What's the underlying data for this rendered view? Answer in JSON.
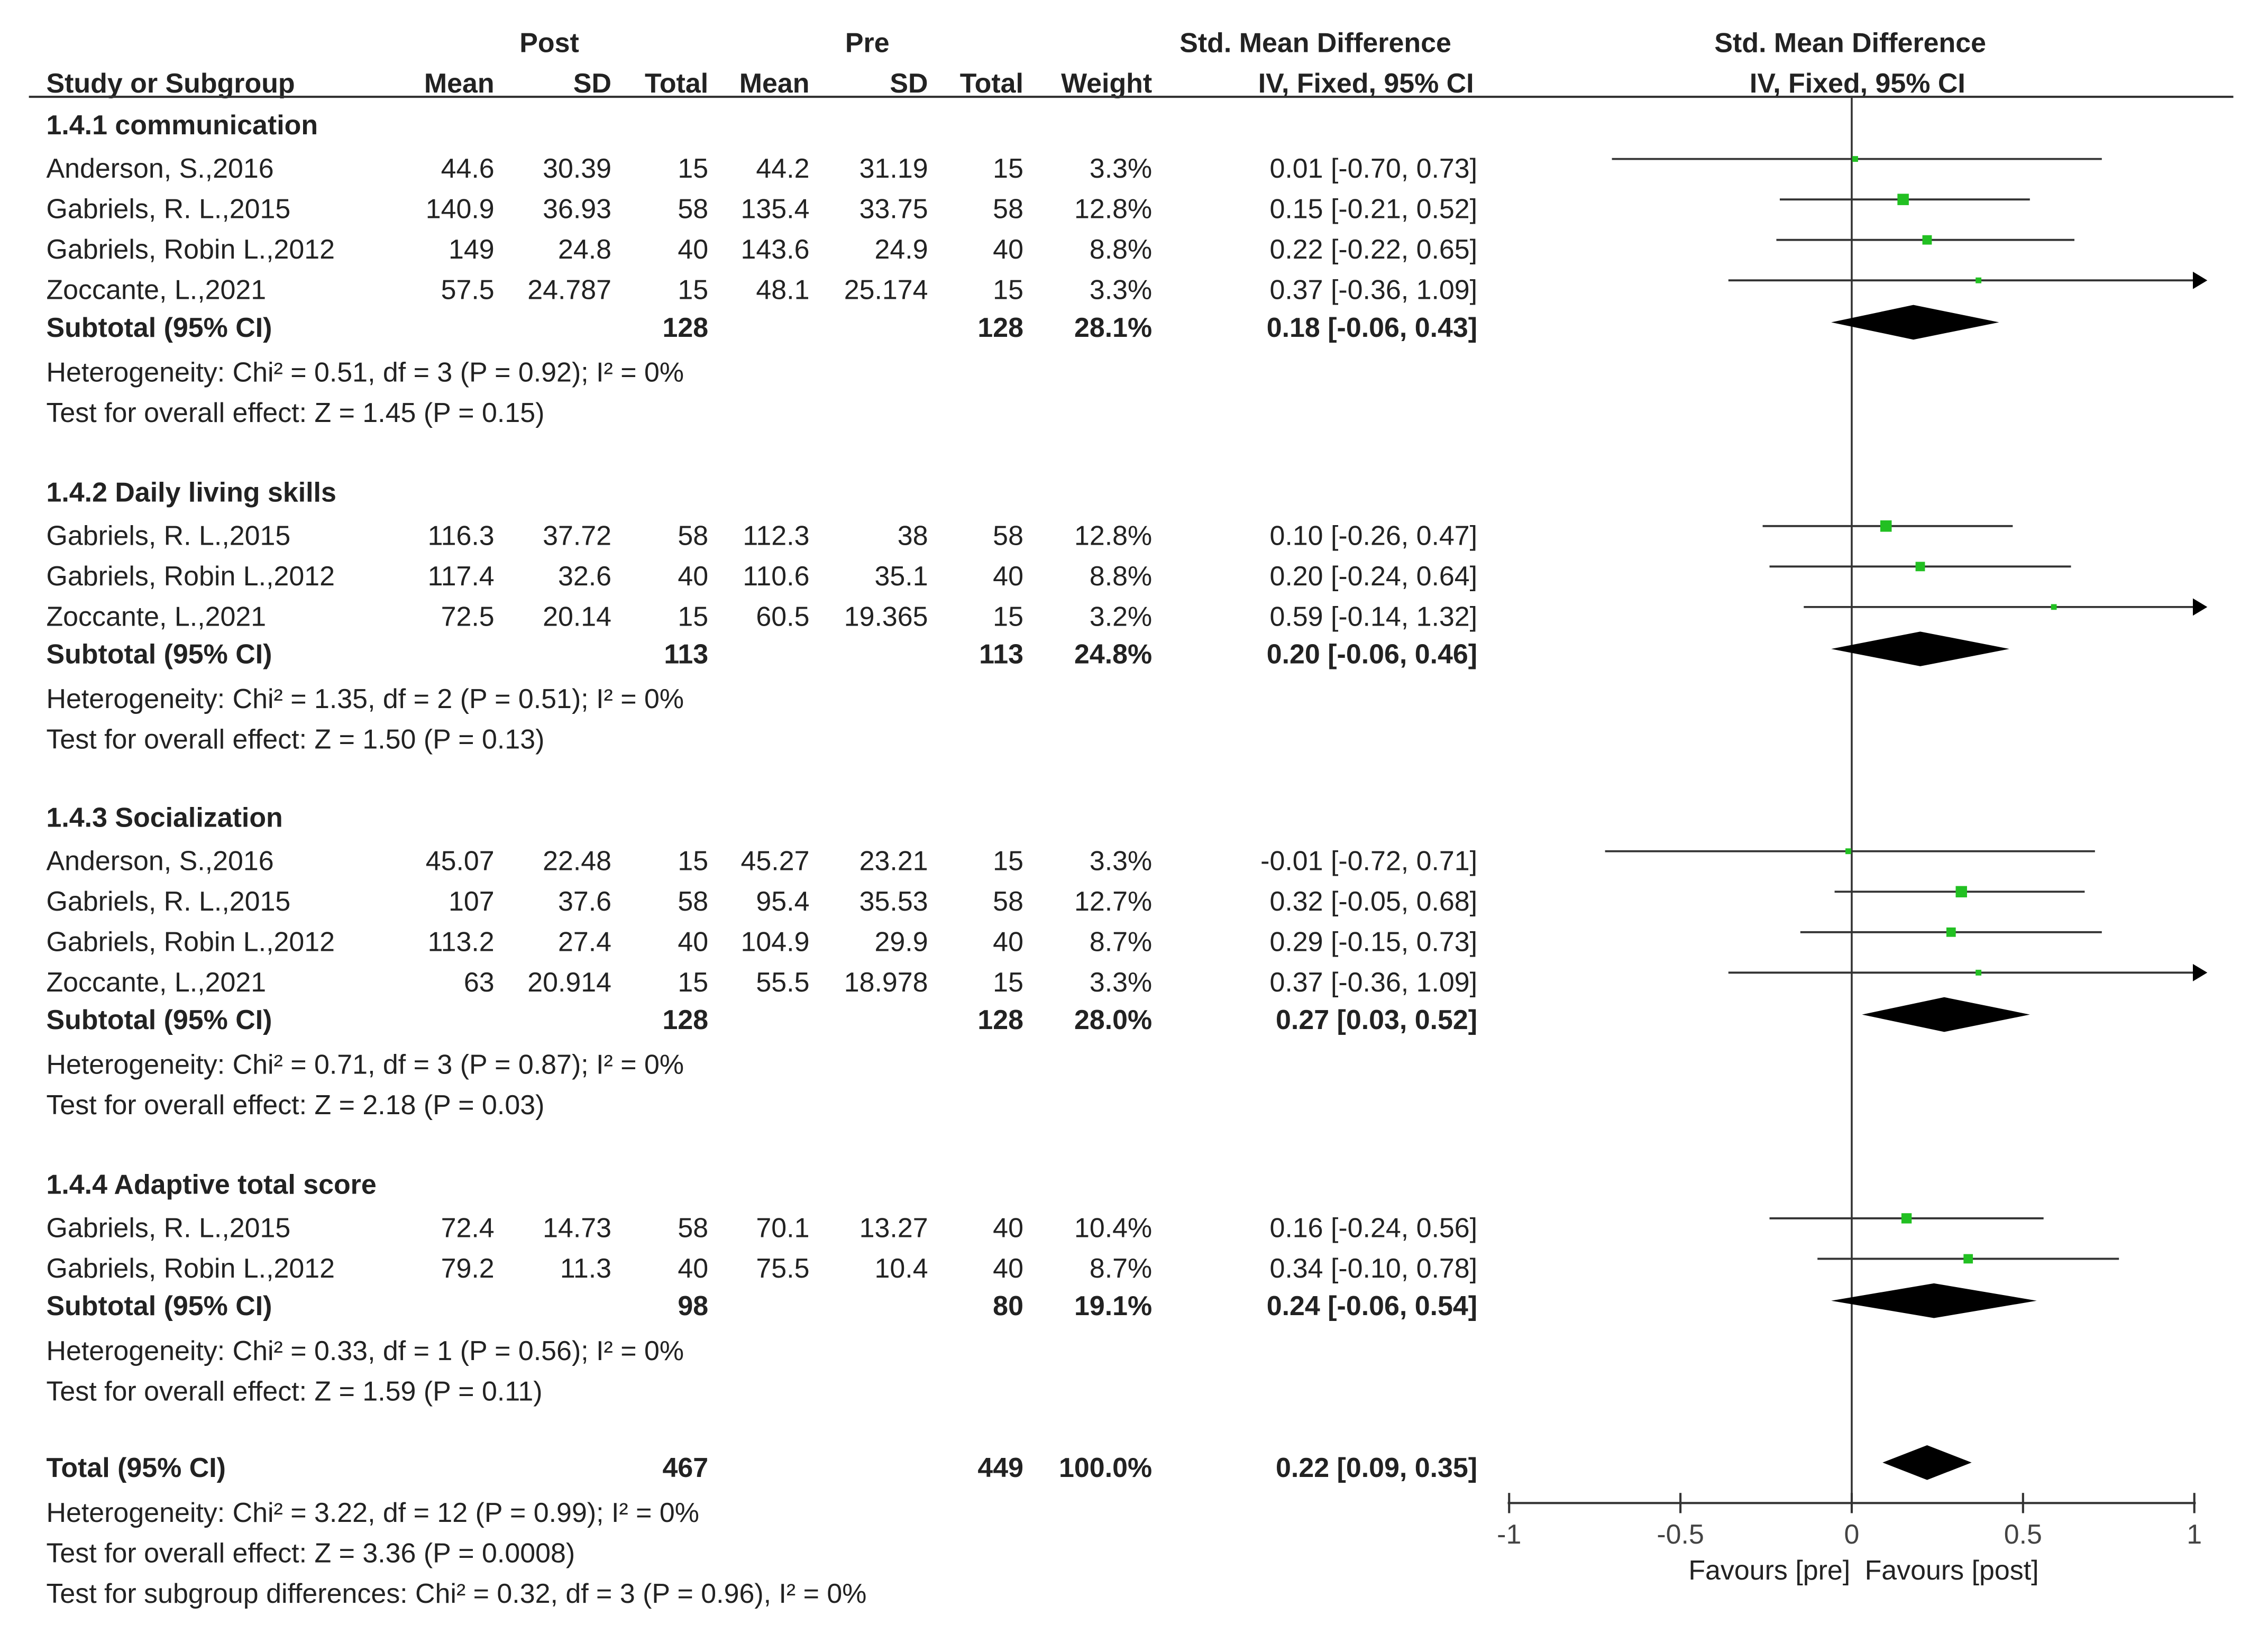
{
  "header": {
    "post_label": "Post",
    "pre_label": "Pre",
    "smd_label_text": "Std. Mean Difference",
    "smd_label_plot": "Std. Mean Difference",
    "col_study": "Study or Subgroup",
    "col_mean_post": "Mean",
    "col_sd_post": "SD",
    "col_total_post": "Total",
    "col_mean_pre": "Mean",
    "col_sd_pre": "SD",
    "col_total_pre": "Total",
    "col_weight": "Weight",
    "col_method_text": "IV, Fixed, 95% CI",
    "col_method_plot": "IV, Fixed, 95% CI"
  },
  "subgroups": [
    {
      "title": "1.4.1 communication",
      "studies": [
        {
          "name": "Anderson, S.,2016",
          "mean_post": "44.6",
          "sd_post": "30.39",
          "n_post": "15",
          "mean_pre": "44.2",
          "sd_pre": "31.19",
          "n_pre": "15",
          "weight": "3.3%",
          "ci_text": "0.01 [-0.70, 0.73]"
        },
        {
          "name": "Gabriels, R. L.,2015",
          "mean_post": "140.9",
          "sd_post": "36.93",
          "n_post": "58",
          "mean_pre": "135.4",
          "sd_pre": "33.75",
          "n_pre": "58",
          "weight": "12.8%",
          "ci_text": "0.15 [-0.21, 0.52]"
        },
        {
          "name": "Gabriels, Robin L.,2012",
          "mean_post": "149",
          "sd_post": "24.8",
          "n_post": "40",
          "mean_pre": "143.6",
          "sd_pre": "24.9",
          "n_pre": "40",
          "weight": "8.8%",
          "ci_text": "0.22 [-0.22, 0.65]"
        },
        {
          "name": "Zoccante, L.,2021",
          "mean_post": "57.5",
          "sd_post": "24.787",
          "n_post": "15",
          "mean_pre": "48.1",
          "sd_pre": "25.174",
          "n_pre": "15",
          "weight": "3.3%",
          "ci_text": "0.37 [-0.36, 1.09]"
        }
      ],
      "subtotal": {
        "label": "Subtotal (95% CI)",
        "n_post": "128",
        "n_pre": "128",
        "weight": "28.1%",
        "ci_text": "0.18 [-0.06, 0.43]"
      },
      "heterogeneity": "Heterogeneity: Chi² = 0.51, df = 3 (P = 0.92); I² = 0%",
      "overall_effect": "Test for overall effect: Z = 1.45 (P = 0.15)"
    },
    {
      "title": "1.4.2 Daily living skills",
      "studies": [
        {
          "name": "Gabriels, R. L.,2015",
          "mean_post": "116.3",
          "sd_post": "37.72",
          "n_post": "58",
          "mean_pre": "112.3",
          "sd_pre": "38",
          "n_pre": "58",
          "weight": "12.8%",
          "ci_text": "0.10 [-0.26, 0.47]"
        },
        {
          "name": "Gabriels, Robin L.,2012",
          "mean_post": "117.4",
          "sd_post": "32.6",
          "n_post": "40",
          "mean_pre": "110.6",
          "sd_pre": "35.1",
          "n_pre": "40",
          "weight": "8.8%",
          "ci_text": "0.20 [-0.24, 0.64]"
        },
        {
          "name": "Zoccante, L.,2021",
          "mean_post": "72.5",
          "sd_post": "20.14",
          "n_post": "15",
          "mean_pre": "60.5",
          "sd_pre": "19.365",
          "n_pre": "15",
          "weight": "3.2%",
          "ci_text": "0.59 [-0.14, 1.32]"
        }
      ],
      "subtotal": {
        "label": "Subtotal (95% CI)",
        "n_post": "113",
        "n_pre": "113",
        "weight": "24.8%",
        "ci_text": "0.20 [-0.06, 0.46]"
      },
      "heterogeneity": "Heterogeneity: Chi² = 1.35, df = 2 (P = 0.51); I² = 0%",
      "overall_effect": "Test for overall effect: Z = 1.50 (P = 0.13)"
    },
    {
      "title": "1.4.3 Socialization",
      "studies": [
        {
          "name": "Anderson, S.,2016",
          "mean_post": "45.07",
          "sd_post": "22.48",
          "n_post": "15",
          "mean_pre": "45.27",
          "sd_pre": "23.21",
          "n_pre": "15",
          "weight": "3.3%",
          "ci_text": "-0.01 [-0.72, 0.71]"
        },
        {
          "name": "Gabriels, R. L.,2015",
          "mean_post": "107",
          "sd_post": "37.6",
          "n_post": "58",
          "mean_pre": "95.4",
          "sd_pre": "35.53",
          "n_pre": "58",
          "weight": "12.7%",
          "ci_text": "0.32 [-0.05, 0.68]"
        },
        {
          "name": "Gabriels, Robin L.,2012",
          "mean_post": "113.2",
          "sd_post": "27.4",
          "n_post": "40",
          "mean_pre": "104.9",
          "sd_pre": "29.9",
          "n_pre": "40",
          "weight": "8.7%",
          "ci_text": "0.29 [-0.15, 0.73]"
        },
        {
          "name": "Zoccante, L.,2021",
          "mean_post": "63",
          "sd_post": "20.914",
          "n_post": "15",
          "mean_pre": "55.5",
          "sd_pre": "18.978",
          "n_pre": "15",
          "weight": "3.3%",
          "ci_text": "0.37 [-0.36, 1.09]"
        }
      ],
      "subtotal": {
        "label": "Subtotal (95% CI)",
        "n_post": "128",
        "n_pre": "128",
        "weight": "28.0%",
        "ci_text": "0.27 [0.03, 0.52]"
      },
      "heterogeneity": "Heterogeneity: Chi² = 0.71, df = 3 (P = 0.87); I² = 0%",
      "overall_effect": "Test for overall effect: Z = 2.18 (P = 0.03)"
    },
    {
      "title": "1.4.4 Adaptive total score",
      "studies": [
        {
          "name": "Gabriels, R. L.,2015",
          "mean_post": "72.4",
          "sd_post": "14.73",
          "n_post": "58",
          "mean_pre": "70.1",
          "sd_pre": "13.27",
          "n_pre": "40",
          "weight": "10.4%",
          "ci_text": "0.16 [-0.24, 0.56]"
        },
        {
          "name": "Gabriels, Robin L.,2012",
          "mean_post": "79.2",
          "sd_post": "11.3",
          "n_post": "40",
          "mean_pre": "75.5",
          "sd_pre": "10.4",
          "n_pre": "40",
          "weight": "8.7%",
          "ci_text": "0.34 [-0.10, 0.78]"
        }
      ],
      "subtotal": {
        "label": "Subtotal (95% CI)",
        "n_post": "98",
        "n_pre": "80",
        "weight": "19.1%",
        "ci_text": "0.24 [-0.06, 0.54]"
      },
      "heterogeneity": "Heterogeneity: Chi² = 0.33, df = 1 (P = 0.56); I² = 0%",
      "overall_effect": "Test for overall effect: Z = 1.59 (P = 0.11)"
    }
  ],
  "total": {
    "label": "Total (95% CI)",
    "n_post": "467",
    "n_pre": "449",
    "weight": "100.0%",
    "ci_text": "0.22 [0.09, 0.35]",
    "heterogeneity": "Heterogeneity: Chi² = 3.22, df = 12 (P = 0.99); I² = 0%",
    "overall_effect": "Test for overall effect: Z = 3.36 (P = 0.0008)",
    "subgroup_diff": "Test for subgroup differences: Chi² = 0.32, df = 3 (P = 0.96), I² = 0%"
  },
  "axis": {
    "favours_left": "Favours [pre]",
    "favours_right": "Favours [post]"
  },
  "colors": {
    "square": "#22c022",
    "line": "#333333",
    "diamond": "#000000"
  },
  "chart_data": {
    "type": "forest",
    "xlim": [
      -1,
      1
    ],
    "ticks": [
      -1,
      -0.5,
      0,
      0.5,
      1
    ],
    "tick_labels": [
      "-1",
      "-0.5",
      "0",
      "0.5",
      "1"
    ],
    "studies": [
      {
        "group": 0,
        "est": 0.01,
        "lo": -0.7,
        "hi": 0.73,
        "weight": 3.3
      },
      {
        "group": 0,
        "est": 0.15,
        "lo": -0.21,
        "hi": 0.52,
        "weight": 12.8
      },
      {
        "group": 0,
        "est": 0.22,
        "lo": -0.22,
        "hi": 0.65,
        "weight": 8.8
      },
      {
        "group": 0,
        "est": 0.37,
        "lo": -0.36,
        "hi": 1.09,
        "weight": 3.3
      },
      {
        "group": 1,
        "est": 0.1,
        "lo": -0.26,
        "hi": 0.47,
        "weight": 12.8
      },
      {
        "group": 1,
        "est": 0.2,
        "lo": -0.24,
        "hi": 0.64,
        "weight": 8.8
      },
      {
        "group": 1,
        "est": 0.59,
        "lo": -0.14,
        "hi": 1.32,
        "weight": 3.2
      },
      {
        "group": 2,
        "est": -0.01,
        "lo": -0.72,
        "hi": 0.71,
        "weight": 3.3
      },
      {
        "group": 2,
        "est": 0.32,
        "lo": -0.05,
        "hi": 0.68,
        "weight": 12.7
      },
      {
        "group": 2,
        "est": 0.29,
        "lo": -0.15,
        "hi": 0.73,
        "weight": 8.7
      },
      {
        "group": 2,
        "est": 0.37,
        "lo": -0.36,
        "hi": 1.09,
        "weight": 3.3
      },
      {
        "group": 3,
        "est": 0.16,
        "lo": -0.24,
        "hi": 0.56,
        "weight": 10.4
      },
      {
        "group": 3,
        "est": 0.34,
        "lo": -0.1,
        "hi": 0.78,
        "weight": 8.7
      }
    ],
    "subtotals": [
      {
        "group": 0,
        "est": 0.18,
        "lo": -0.06,
        "hi": 0.43
      },
      {
        "group": 1,
        "est": 0.2,
        "lo": -0.06,
        "hi": 0.46
      },
      {
        "group": 2,
        "est": 0.27,
        "lo": 0.03,
        "hi": 0.52
      },
      {
        "group": 3,
        "est": 0.24,
        "lo": -0.06,
        "hi": 0.54
      }
    ],
    "overall": {
      "est": 0.22,
      "lo": 0.09,
      "hi": 0.35
    }
  }
}
